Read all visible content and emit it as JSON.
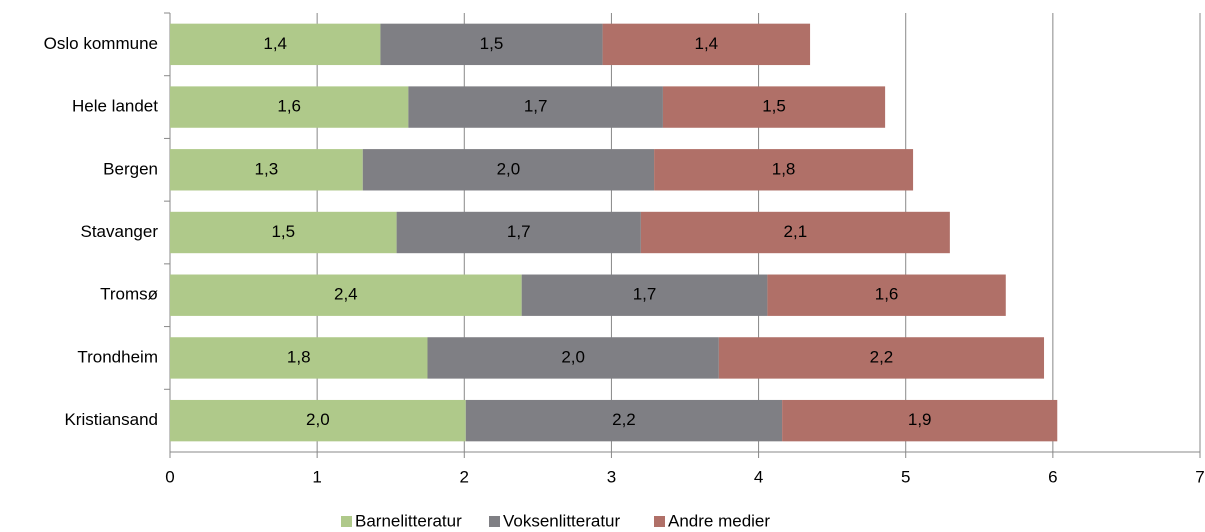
{
  "chart_data": {
    "type": "stacked_barh",
    "categories": [
      "Oslo kommune",
      "Hele landet",
      "Bergen",
      "Stavanger",
      "Tromsø",
      "Trondheim",
      "Kristiansand"
    ],
    "series": [
      {
        "name": "Barnelitteratur",
        "color": "#afc98a",
        "values": [
          1.43,
          1.62,
          1.31,
          1.54,
          2.39,
          1.75,
          2.01
        ],
        "value_labels": [
          "1,4",
          "1,6",
          "1,3",
          "1,5",
          "2,4",
          "1,8",
          "2,0"
        ]
      },
      {
        "name": "Voksenlitteratur",
        "color": "#7f7f84",
        "values": [
          1.51,
          1.73,
          1.98,
          1.66,
          1.67,
          1.98,
          2.15
        ],
        "value_labels": [
          "1,5",
          "1,7",
          "2,0",
          "1,7",
          "1,7",
          "2,0",
          "2,2"
        ]
      },
      {
        "name": "Andre medier",
        "color": "#b07068",
        "values": [
          1.41,
          1.51,
          1.76,
          2.1,
          1.62,
          2.21,
          1.87
        ],
        "value_labels": [
          "1,4",
          "1,5",
          "1,8",
          "2,1",
          "1,6",
          "2,2",
          "1,9"
        ]
      }
    ],
    "xlim": [
      0,
      7
    ],
    "xticks": [
      0,
      1,
      2,
      3,
      4,
      5,
      6,
      7
    ],
    "grid": true,
    "legend": "bottom"
  }
}
